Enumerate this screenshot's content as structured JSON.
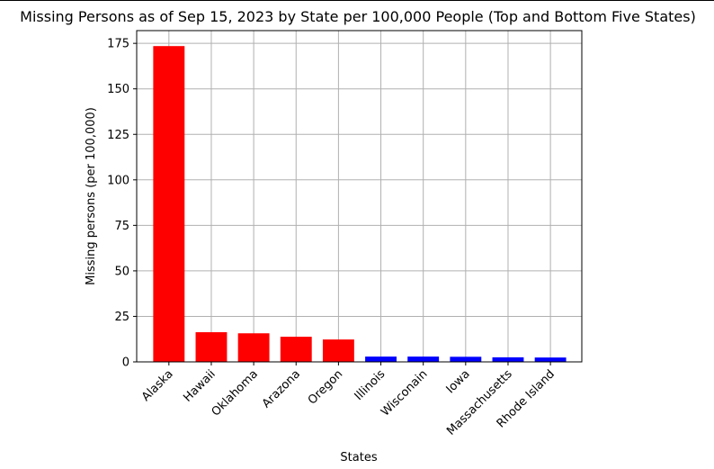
{
  "chart_data": {
    "type": "bar",
    "title": "Missing Persons as of Sep 15, 2023 by State per 100,000 People (Top and Bottom Five States)",
    "xlabel": "States",
    "ylabel": "Missing persons (per 100,000)",
    "categories": [
      "Alaska",
      "Hawaii",
      "Oklahoma",
      "Arazona",
      "Oregon",
      "Illinois",
      "Wisconain",
      "Iowa",
      "Massachusetts",
      "Rhode Island"
    ],
    "values": [
      173.5,
      16.3,
      15.7,
      13.8,
      12.3,
      2.9,
      2.9,
      2.8,
      2.5,
      2.4
    ],
    "colors": [
      "#ff0000",
      "#ff0000",
      "#ff0000",
      "#ff0000",
      "#ff0000",
      "#0000ff",
      "#0000ff",
      "#0000ff",
      "#0000ff",
      "#0000ff"
    ],
    "ylim": [
      0,
      182
    ],
    "yticks": [
      0,
      25,
      50,
      75,
      100,
      125,
      150,
      175
    ],
    "grid": true,
    "xtick_rotation": 45
  }
}
